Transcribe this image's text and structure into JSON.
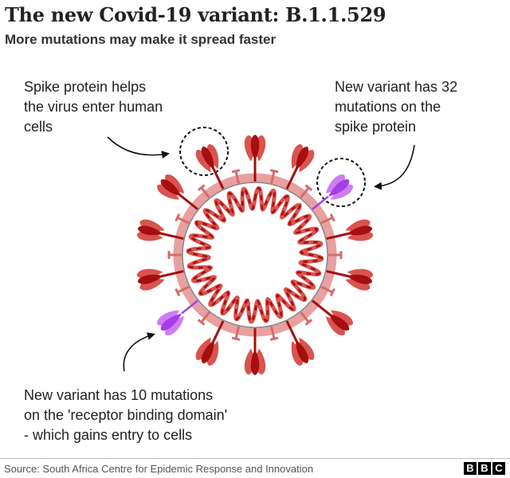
{
  "header": {
    "title": "The new Covid-19 variant: B.1.1.529",
    "subtitle": "More mutations may make it spread faster"
  },
  "annotations": {
    "spike_protein": [
      "Spike protein helps",
      "the virus enter human",
      "cells"
    ],
    "spike_mutations": [
      "New variant has 32",
      "mutations on the",
      "spike protein"
    ],
    "rbd_mutations": [
      "New variant has 10 mutations",
      "on the 'receptor binding domain'",
      "- which gains entry to cells"
    ]
  },
  "footer": {
    "source": "Source:  South Africa Centre for Epidemic Response and Innovation",
    "logo": [
      "B",
      "B",
      "C"
    ]
  },
  "colors": {
    "spike_dark": "#a50f0f",
    "spike_light": "#d9534f",
    "membrane": "#e8a0a0",
    "mutation": "#a63ee8",
    "mutation_light": "#d07cf5"
  }
}
